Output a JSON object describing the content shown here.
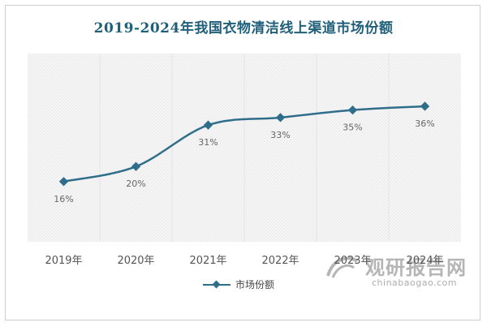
{
  "title": "2019-2024年我国衣物清洁线上渠道市场份额",
  "chart_data": {
    "type": "line",
    "title": "2019-2024年我国衣物清洁线上渠道市场份额",
    "categories": [
      "2019年",
      "2020年",
      "2021年",
      "2022年",
      "2023年",
      "2024年"
    ],
    "series": [
      {
        "name": "市场份额",
        "values": [
          16,
          20,
          31,
          33,
          35,
          36
        ],
        "labels": [
          "16%",
          "20%",
          "31%",
          "33%",
          "35%",
          "36%"
        ],
        "color": "#2e6e8a"
      }
    ],
    "ylim": [
      0,
      50
    ],
    "grid": "vertical-bands",
    "legend": "bottom-center"
  },
  "legend": {
    "label": "市场份额"
  },
  "watermark": {
    "name": "观研报告网",
    "url": "chinabaogao.com"
  }
}
